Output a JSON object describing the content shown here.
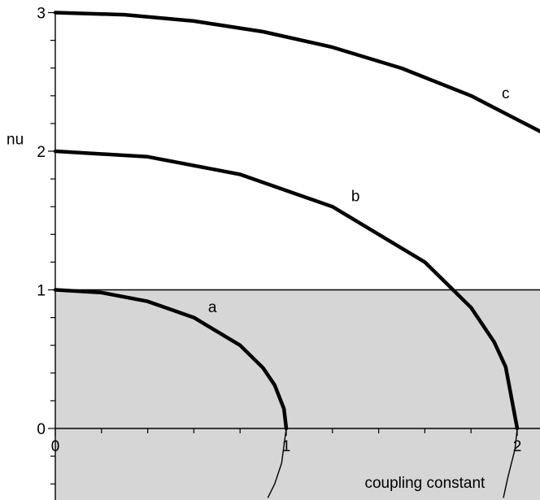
{
  "colors": {
    "shade": "#d6d6d6",
    "axis": "#000000",
    "curve": "#000000",
    "background": "#ffffff"
  },
  "chart_data": {
    "type": "line",
    "title": "",
    "xlabel": "coupling constant",
    "ylabel": "nu",
    "xlim": [
      0,
      2.1
    ],
    "ylim": [
      -0.5,
      3
    ],
    "x_ticks": [
      {
        "value": 0,
        "label": "0"
      },
      {
        "value": 1,
        "label": "1"
      },
      {
        "value": 2,
        "label": "2"
      }
    ],
    "y_ticks": [
      {
        "value": 0,
        "label": "0"
      },
      {
        "value": 1,
        "label": "1"
      },
      {
        "value": 2,
        "label": "2"
      },
      {
        "value": 3,
        "label": "3"
      }
    ],
    "x_minor_step": 0.2,
    "y_minor_step": 0.2,
    "grid": false,
    "shaded_region": {
      "y_from": -0.5,
      "y_to": 1
    },
    "horizontal_lines": [
      0,
      1
    ],
    "series": [
      {
        "name": "a",
        "x": [
          0,
          0.2,
          0.4,
          0.6,
          0.8,
          0.9,
          0.95,
          0.99,
          1.0
        ],
        "y": [
          1,
          0.98,
          0.917,
          0.8,
          0.6,
          0.436,
          0.312,
          0.141,
          0
        ]
      },
      {
        "name": "b",
        "x": [
          0,
          0.4,
          0.8,
          1.2,
          1.6,
          1.8,
          1.9,
          1.95,
          2.0
        ],
        "y": [
          2,
          1.96,
          1.833,
          1.6,
          1.2,
          0.872,
          0.624,
          0.444,
          0
        ]
      },
      {
        "name": "c",
        "x": [
          0,
          0.3,
          0.6,
          0.9,
          1.2,
          1.5,
          1.8,
          2.1
        ],
        "y": [
          3,
          2.985,
          2.939,
          2.862,
          2.75,
          2.598,
          2.4,
          2.142
        ]
      }
    ],
    "continuations": [
      {
        "x": [
          0.92,
          0.95,
          0.98,
          1.0
        ],
        "y": [
          -0.5,
          -0.4,
          -0.25,
          0
        ]
      },
      {
        "x": [
          1.94,
          1.96,
          1.99,
          2.0
        ],
        "y": [
          -0.5,
          -0.35,
          -0.15,
          0
        ]
      }
    ],
    "curve_labels": [
      {
        "text": "a",
        "x": 0.68,
        "y": 0.84
      },
      {
        "text": "b",
        "x": 1.3,
        "y": 1.64
      },
      {
        "text": "c",
        "x": 1.95,
        "y": 2.38
      }
    ]
  }
}
